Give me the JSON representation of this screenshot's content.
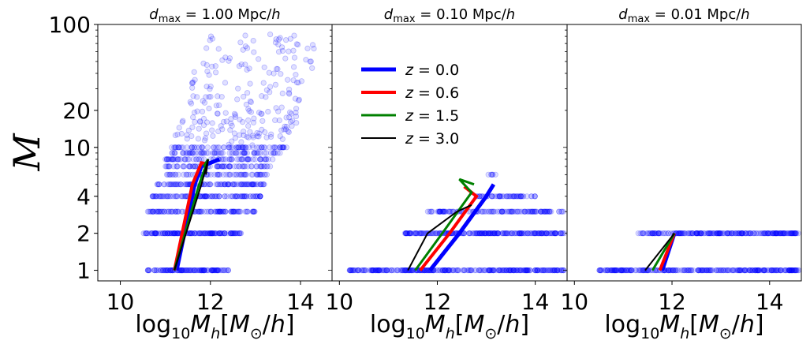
{
  "figure": {
    "ylabel": "𝑀",
    "colors": {
      "z0": "#0000ff",
      "z06": "#ff0000",
      "z15": "#008000",
      "z30": "#000000",
      "scatter": "#0000ff"
    }
  },
  "legend": {
    "entries": [
      {
        "label": "z = 0.0",
        "color": "#0000ff",
        "width": "thick"
      },
      {
        "label": "z = 0.6",
        "color": "#ff0000",
        "width": "medium"
      },
      {
        "label": "z = 1.5",
        "color": "#008000",
        "width": "thin"
      },
      {
        "label": "z = 3.0",
        "color": "#000000",
        "width": "thinnest"
      }
    ]
  },
  "chart_data": [
    {
      "type": "scatter",
      "title": "d_max = 1.00 Mpc/h",
      "xlabel": "log₁₀M_h[M⊙/h]",
      "ylabel": "𝑀",
      "xlim": [
        9.5,
        14.7
      ],
      "ylim": [
        0.82,
        100
      ],
      "yscale": "log",
      "xticks": [
        10,
        12,
        14
      ],
      "yticks": [
        1,
        2,
        4,
        10,
        20,
        100
      ],
      "scatter_bands": [
        {
          "y": 1,
          "x_range": [
            10.6,
            12.4
          ]
        },
        {
          "y": 2,
          "x_range": [
            10.5,
            12.7
          ]
        },
        {
          "y": 3,
          "x_range": [
            10.6,
            13.0
          ]
        },
        {
          "y": 4,
          "x_range": [
            10.7,
            13.2
          ]
        },
        {
          "y": 5,
          "x_range": [
            10.8,
            13.2
          ]
        },
        {
          "y": 6,
          "x_range": [
            10.9,
            13.3
          ]
        },
        {
          "y": 7,
          "x_range": [
            11.0,
            13.4
          ]
        },
        {
          "y": 8,
          "x_range": [
            11.0,
            13.5
          ]
        },
        {
          "y": 9,
          "x_range": [
            11.1,
            13.6
          ]
        },
        {
          "y": 10,
          "x_range": [
            11.1,
            13.7
          ]
        },
        {
          "y": 12,
          "x_range": [
            11.2,
            13.8
          ]
        },
        {
          "y": 14,
          "x_range": [
            11.3,
            13.9
          ]
        },
        {
          "y": 17,
          "x_range": [
            11.4,
            14.0
          ]
        },
        {
          "y": 22,
          "x_range": [
            11.5,
            14.1
          ]
        },
        {
          "y": 30,
          "x_range": [
            11.5,
            14.2
          ]
        },
        {
          "y": 45,
          "x_range": [
            11.6,
            14.3
          ]
        },
        {
          "y": 70,
          "x_range": [
            11.7,
            14.3
          ]
        }
      ],
      "series": [
        {
          "name": "z = 0.0",
          "color": "#0000ff",
          "x": [
            11.25,
            11.65,
            11.8,
            12.2
          ],
          "y": [
            1,
            5,
            7,
            8
          ]
        },
        {
          "name": "z = 0.6",
          "color": "#ff0000",
          "x": [
            11.2,
            11.6,
            11.8,
            11.95
          ],
          "y": [
            1,
            5,
            7.5,
            7.3
          ]
        },
        {
          "name": "z = 1.5",
          "color": "#008000",
          "x": [
            11.2,
            11.75,
            11.95,
            11.85
          ],
          "y": [
            1,
            5,
            8,
            7
          ]
        },
        {
          "name": "z = 3.0",
          "color": "#000000",
          "x": [
            11.2,
            11.8,
            11.95,
            11.9
          ],
          "y": [
            1,
            5,
            8,
            6
          ]
        }
      ]
    },
    {
      "type": "scatter",
      "title": "d_max = 0.10 Mpc/h",
      "xlabel": "log₁₀M_h[M⊙/h]",
      "xlim": [
        9.85,
        14.65
      ],
      "ylim": [
        0.82,
        100
      ],
      "yscale": "log",
      "xticks": [
        10,
        12,
        14
      ],
      "scatter_bands": [
        {
          "y": 1,
          "x_range": [
            10.2,
            14.6
          ]
        },
        {
          "y": 2,
          "x_range": [
            11.3,
            14.6
          ]
        },
        {
          "y": 3,
          "x_range": [
            11.8,
            14.6
          ]
        },
        {
          "y": 4,
          "x_range": [
            12.8,
            14.0
          ]
        },
        {
          "y": 6,
          "x_range": [
            13.0,
            13.2
          ]
        }
      ],
      "series": [
        {
          "name": "z = 0.0",
          "color": "#0000ff",
          "x": [
            11.85,
            12.45,
            13.0,
            13.15
          ],
          "y": [
            1,
            2,
            4,
            5
          ]
        },
        {
          "name": "z = 0.6",
          "color": "#ff0000",
          "x": [
            11.65,
            12.25,
            12.8,
            12.55
          ],
          "y": [
            1,
            2,
            4,
            4.8
          ]
        },
        {
          "name": "z = 1.5",
          "color": "#008000",
          "x": [
            11.55,
            12.1,
            12.7,
            12.45,
            12.75
          ],
          "y": [
            1,
            2,
            4.3,
            5.5,
            5
          ]
        },
        {
          "name": "z = 3.0",
          "color": "#000000",
          "x": [
            11.4,
            11.8,
            12.4,
            12.7
          ],
          "y": [
            1,
            2,
            3,
            3.4
          ]
        }
      ]
    },
    {
      "type": "scatter",
      "title": "d_max = 0.01 Mpc/h",
      "xlabel": "log₁₀M_h[M⊙/h]",
      "xlim": [
        9.85,
        14.65
      ],
      "ylim": [
        0.82,
        100
      ],
      "yscale": "log",
      "xticks": [
        10,
        12,
        14
      ],
      "scatter_bands": [
        {
          "y": 1,
          "x_range": [
            10.5,
            14.6
          ]
        },
        {
          "y": 2,
          "x_range": [
            11.3,
            14.6
          ]
        }
      ],
      "series": [
        {
          "name": "z = 0.0",
          "color": "#0000ff",
          "x": [
            11.8,
            12.05
          ],
          "y": [
            1,
            2
          ]
        },
        {
          "name": "z = 0.6",
          "color": "#ff0000",
          "x": [
            11.75,
            12.05
          ],
          "y": [
            1,
            2
          ]
        },
        {
          "name": "z = 1.5",
          "color": "#008000",
          "x": [
            11.6,
            12.05
          ],
          "y": [
            1,
            2
          ]
        },
        {
          "name": "z = 3.0",
          "color": "#000000",
          "x": [
            11.45,
            12.05
          ],
          "y": [
            1,
            2
          ]
        }
      ]
    }
  ]
}
